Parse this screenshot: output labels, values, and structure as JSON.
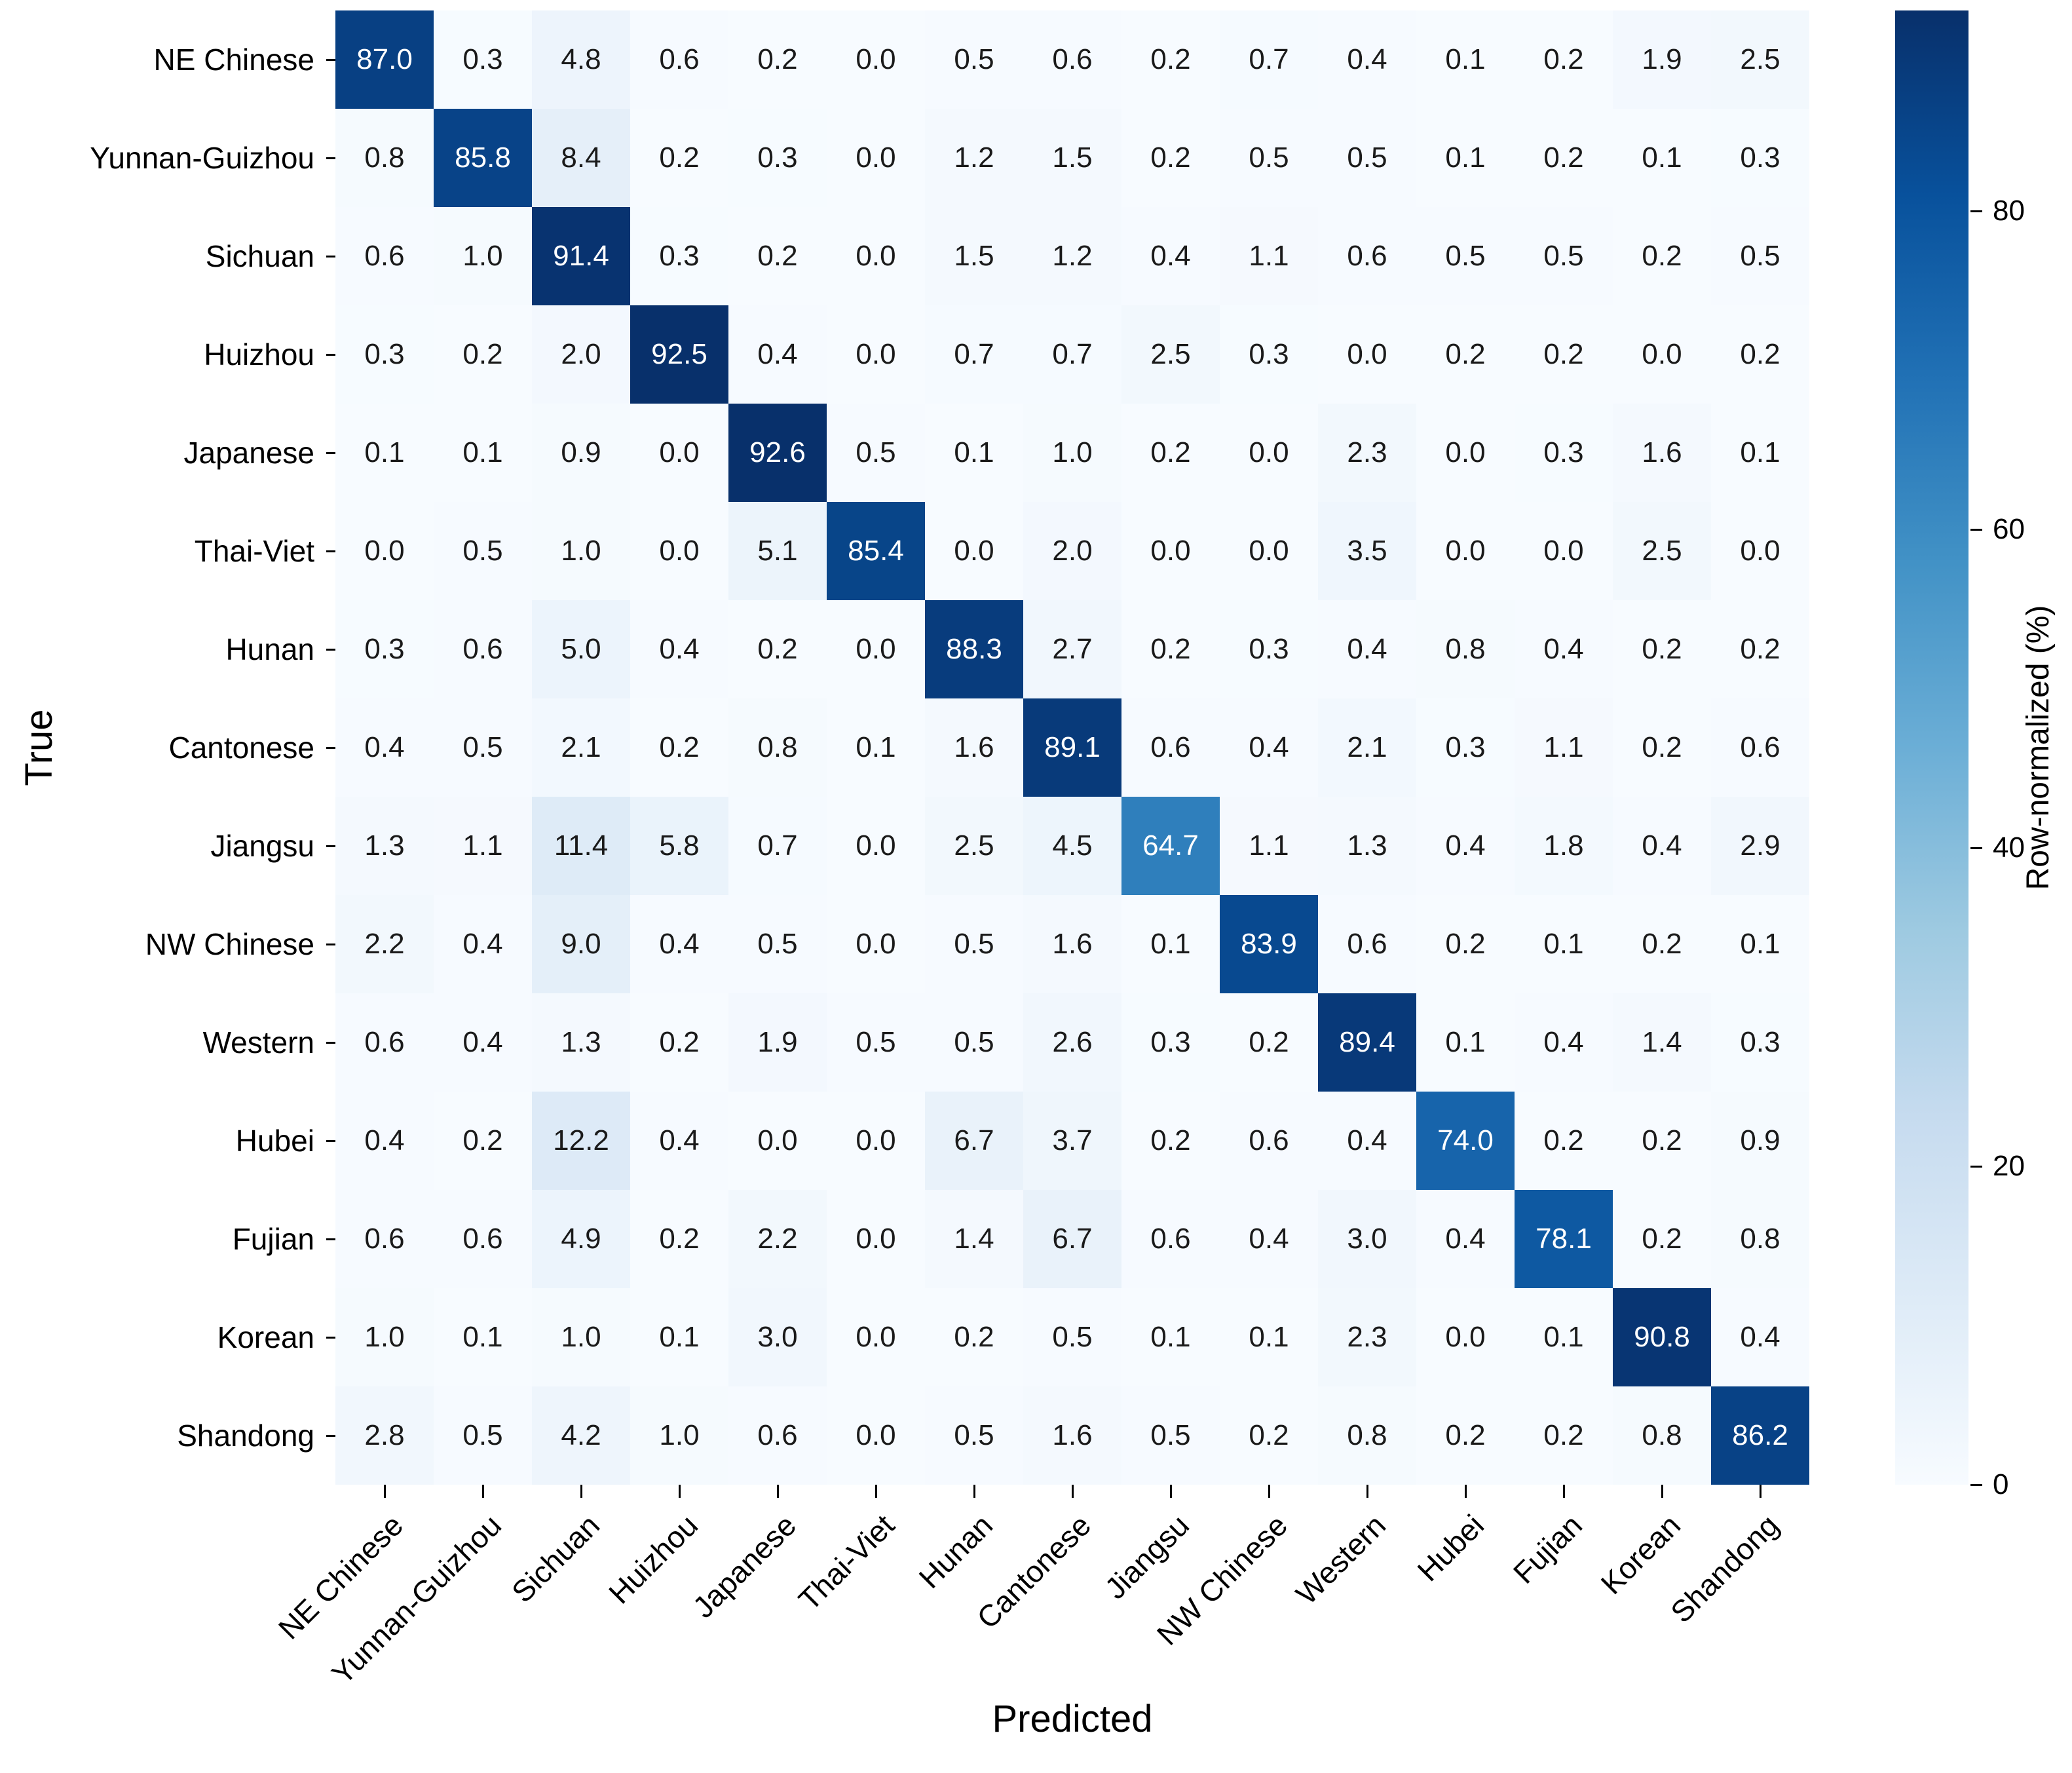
{
  "chart_data": {
    "type": "heatmap",
    "title": "",
    "xlabel": "Predicted",
    "ylabel": "True",
    "colorbar_label": "Row-normalized (%)",
    "colorbar_ticks": [
      0,
      20,
      40,
      60,
      80
    ],
    "vmin": 0,
    "vmax": 92.6,
    "colormap": "Blues",
    "grid": false,
    "value_format": "one-decimal",
    "categories": [
      "NE Chinese",
      "Yunnan-Guizhou",
      "Sichuan",
      "Huizhou",
      "Japanese",
      "Thai-Viet",
      "Hunan",
      "Cantonese",
      "Jiangsu",
      "NW Chinese",
      "Western",
      "Hubei",
      "Fujian",
      "Korean",
      "Shandong"
    ],
    "matrix": [
      [
        87.0,
        0.3,
        4.8,
        0.6,
        0.2,
        0.0,
        0.5,
        0.6,
        0.2,
        0.7,
        0.4,
        0.1,
        0.2,
        1.9,
        2.5
      ],
      [
        0.8,
        85.8,
        8.4,
        0.2,
        0.3,
        0.0,
        1.2,
        1.5,
        0.2,
        0.5,
        0.5,
        0.1,
        0.2,
        0.1,
        0.3
      ],
      [
        0.6,
        1.0,
        91.4,
        0.3,
        0.2,
        0.0,
        1.5,
        1.2,
        0.4,
        1.1,
        0.6,
        0.5,
        0.5,
        0.2,
        0.5
      ],
      [
        0.3,
        0.2,
        2.0,
        92.5,
        0.4,
        0.0,
        0.7,
        0.7,
        2.5,
        0.3,
        0.0,
        0.2,
        0.2,
        0.0,
        0.2
      ],
      [
        0.1,
        0.1,
        0.9,
        0.0,
        92.6,
        0.5,
        0.1,
        1.0,
        0.2,
        0.0,
        2.3,
        0.0,
        0.3,
        1.6,
        0.1
      ],
      [
        0.0,
        0.5,
        1.0,
        0.0,
        5.1,
        85.4,
        0.0,
        2.0,
        0.0,
        0.0,
        3.5,
        0.0,
        0.0,
        2.5,
        0.0
      ],
      [
        0.3,
        0.6,
        5.0,
        0.4,
        0.2,
        0.0,
        88.3,
        2.7,
        0.2,
        0.3,
        0.4,
        0.8,
        0.4,
        0.2,
        0.2
      ],
      [
        0.4,
        0.5,
        2.1,
        0.2,
        0.8,
        0.1,
        1.6,
        89.1,
        0.6,
        0.4,
        2.1,
        0.3,
        1.1,
        0.2,
        0.6
      ],
      [
        1.3,
        1.1,
        11.4,
        5.8,
        0.7,
        0.0,
        2.5,
        4.5,
        64.7,
        1.1,
        1.3,
        0.4,
        1.8,
        0.4,
        2.9
      ],
      [
        2.2,
        0.4,
        9.0,
        0.4,
        0.5,
        0.0,
        0.5,
        1.6,
        0.1,
        83.9,
        0.6,
        0.2,
        0.1,
        0.2,
        0.1
      ],
      [
        0.6,
        0.4,
        1.3,
        0.2,
        1.9,
        0.5,
        0.5,
        2.6,
        0.3,
        0.2,
        89.4,
        0.1,
        0.4,
        1.4,
        0.3
      ],
      [
        0.4,
        0.2,
        12.2,
        0.4,
        0.0,
        0.0,
        6.7,
        3.7,
        0.2,
        0.6,
        0.4,
        74.0,
        0.2,
        0.2,
        0.9
      ],
      [
        0.6,
        0.6,
        4.9,
        0.2,
        2.2,
        0.0,
        1.4,
        6.7,
        0.6,
        0.4,
        3.0,
        0.4,
        78.1,
        0.2,
        0.8
      ],
      [
        1.0,
        0.1,
        1.0,
        0.1,
        3.0,
        0.0,
        0.2,
        0.5,
        0.1,
        0.1,
        2.3,
        0.0,
        0.1,
        90.8,
        0.4
      ],
      [
        2.8,
        0.5,
        4.2,
        1.0,
        0.6,
        0.0,
        0.5,
        1.6,
        0.5,
        0.2,
        0.8,
        0.2,
        0.2,
        0.8,
        86.2
      ]
    ]
  },
  "colors": {
    "annot_dark": "#1a1a1a",
    "annot_light": "#ffffff",
    "axis_text": "#000000",
    "colormap_min": "#f7fbff",
    "colormap_max": "#08306b"
  }
}
